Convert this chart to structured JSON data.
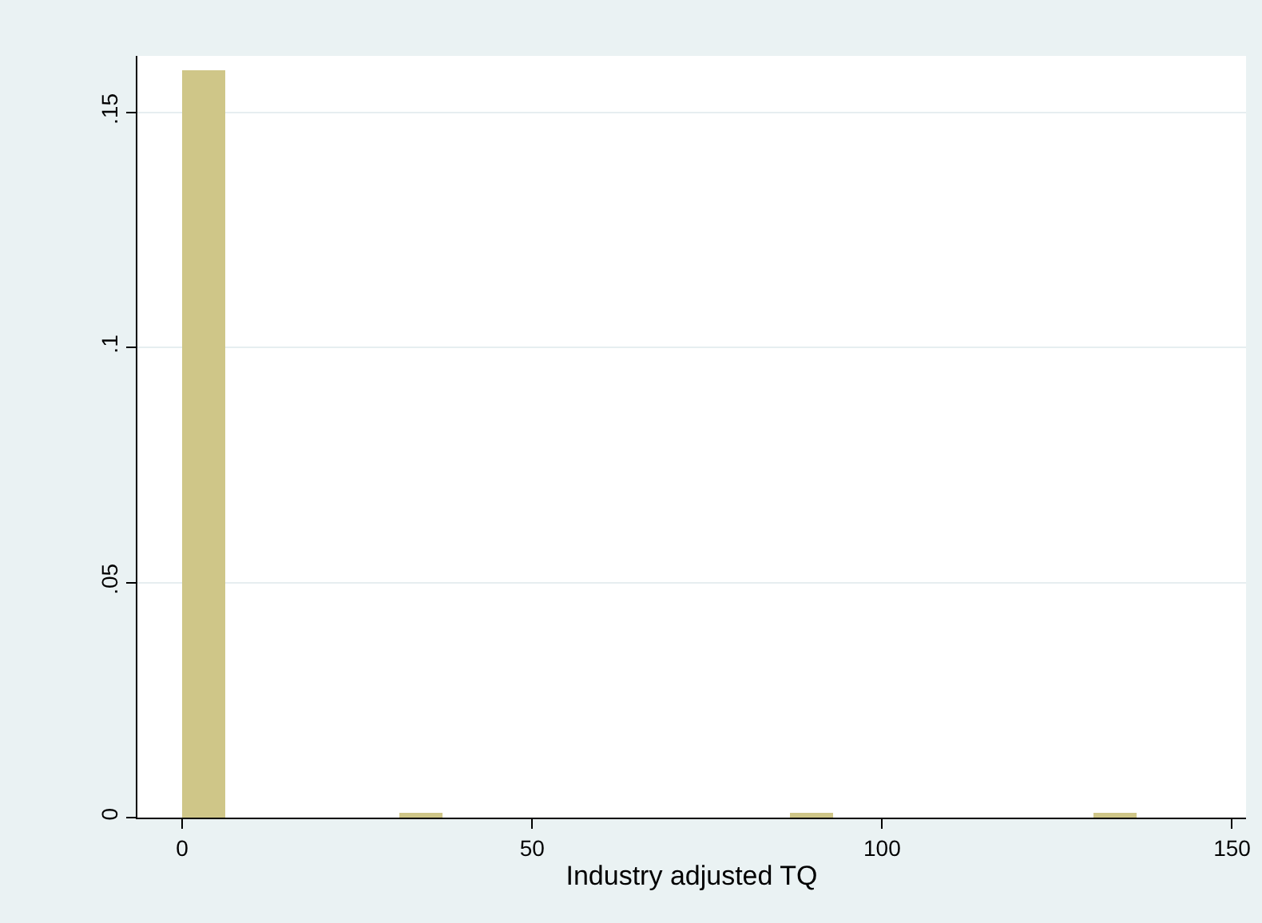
{
  "chart_data": {
    "type": "histogram",
    "xlabel": "Industry adjusted TQ",
    "bins": [
      0,
      6.2,
      12.4,
      18.6,
      24.8,
      31,
      37.2,
      43.4,
      49.6,
      55.8,
      62,
      68.2,
      74.4,
      80.6,
      86.8,
      93,
      99.2,
      105.4,
      111.6,
      117.8,
      124,
      130.2,
      136.4
    ],
    "values": [
      0.159,
      0,
      0,
      0,
      0,
      0.001,
      0,
      0,
      0,
      0,
      0,
      0,
      0,
      0,
      0.001,
      0,
      0,
      0,
      0,
      0,
      0,
      0.001
    ],
    "color": "#cfc688",
    "xlim": [
      -6.4,
      152
    ],
    "xticks": [
      0,
      50,
      100,
      150
    ],
    "ylim": [
      0,
      0.162
    ],
    "yticks": [
      {
        "value": 0,
        "label": "0"
      },
      {
        "value": 0.05,
        "label": ".05"
      },
      {
        "value": 0.1,
        "label": ".1"
      },
      {
        "value": 0.15,
        "label": ".15"
      }
    ],
    "grid": "y"
  }
}
